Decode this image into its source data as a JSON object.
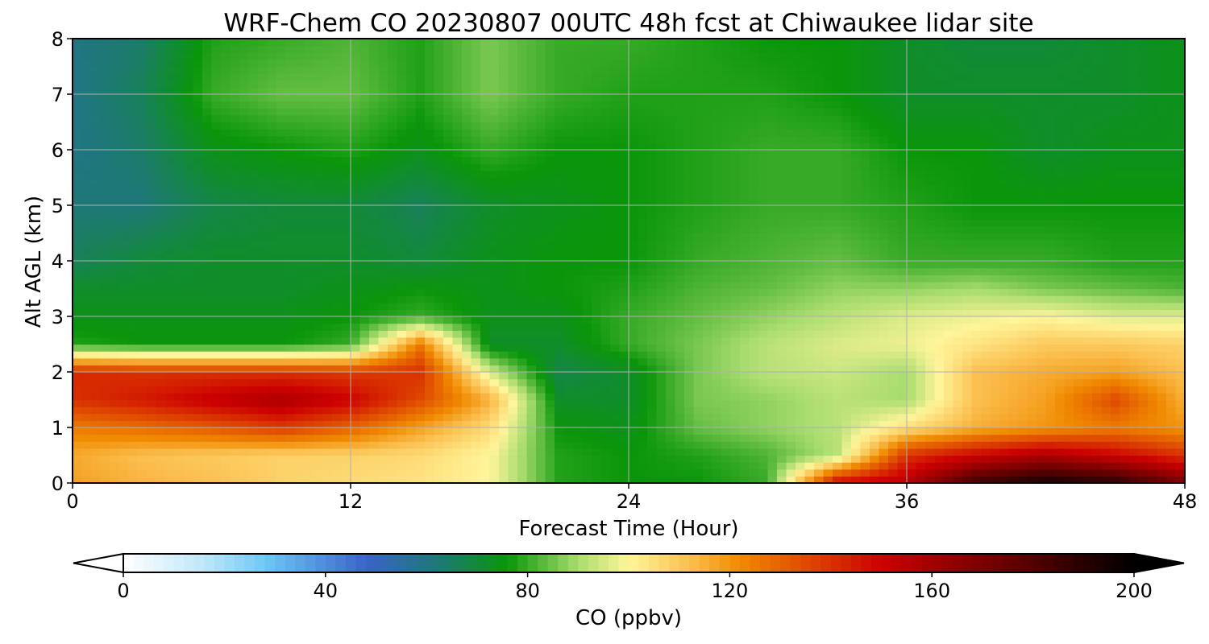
{
  "chart_data": {
    "type": "heatmap",
    "title": "WRF-Chem CO  20230807 00UTC 48h fcst at Chiwaukee lidar site",
    "xlabel": "Forecast Time (Hour)",
    "ylabel": "Alt AGL (km)",
    "xlim": [
      0,
      48
    ],
    "ylim": [
      0,
      8
    ],
    "xticks": [
      0,
      12,
      24,
      36,
      48
    ],
    "yticks": [
      0,
      1,
      2,
      3,
      4,
      5,
      6,
      7,
      8
    ],
    "grid": true,
    "x": [
      0,
      3,
      6,
      9,
      12,
      15,
      18,
      21,
      24,
      27,
      30,
      33,
      36,
      39,
      42,
      45,
      48
    ],
    "y": [
      0,
      0.5,
      1,
      1.5,
      2,
      2.5,
      3,
      3.5,
      4,
      5,
      6,
      7,
      8
    ],
    "z": [
      [
        118,
        114,
        112,
        108,
        106,
        104,
        100,
        78,
        76,
        76,
        80,
        150,
        155,
        185,
        195,
        190,
        170
      ],
      [
        116,
        112,
        110,
        108,
        108,
        106,
        100,
        78,
        76,
        78,
        82,
        92,
        140,
        150,
        158,
        150,
        140
      ],
      [
        125,
        128,
        132,
        138,
        130,
        118,
        106,
        76,
        74,
        84,
        88,
        92,
        105,
        115,
        120,
        125,
        120
      ],
      [
        140,
        145,
        152,
        158,
        150,
        135,
        115,
        72,
        72,
        86,
        88,
        92,
        90,
        112,
        118,
        135,
        115
      ],
      [
        142,
        140,
        140,
        140,
        138,
        140,
        95,
        68,
        72,
        86,
        92,
        94,
        90,
        112,
        116,
        118,
        112
      ],
      [
        78,
        76,
        76,
        76,
        80,
        125,
        72,
        72,
        80,
        86,
        92,
        96,
        98,
        104,
        110,
        110,
        108
      ],
      [
        74,
        74,
        74,
        74,
        76,
        80,
        74,
        74,
        80,
        84,
        88,
        92,
        96,
        98,
        100,
        96,
        96
      ],
      [
        72,
        72,
        72,
        72,
        74,
        76,
        74,
        76,
        78,
        82,
        84,
        88,
        88,
        90,
        86,
        84,
        82
      ],
      [
        66,
        70,
        72,
        72,
        72,
        70,
        74,
        76,
        76,
        80,
        82,
        84,
        80,
        80,
        80,
        78,
        78
      ],
      [
        62,
        62,
        68,
        70,
        70,
        66,
        72,
        74,
        76,
        78,
        80,
        80,
        78,
        76,
        76,
        76,
        76
      ],
      [
        60,
        64,
        74,
        76,
        78,
        74,
        80,
        76,
        76,
        78,
        80,
        80,
        76,
        76,
        72,
        74,
        74
      ],
      [
        60,
        66,
        80,
        84,
        84,
        78,
        86,
        80,
        78,
        78,
        78,
        76,
        72,
        72,
        72,
        72,
        74
      ],
      [
        60,
        64,
        78,
        80,
        82,
        78,
        86,
        80,
        80,
        78,
        76,
        76,
        72,
        70,
        70,
        72,
        74
      ]
    ],
    "colorbar": {
      "label": "CO  (ppbv)",
      "min": 0,
      "max": 200,
      "ticks": [
        0,
        40,
        80,
        120,
        160,
        200
      ],
      "extend": "both",
      "colors": [
        {
          "v": 0,
          "c": "#ffffff"
        },
        {
          "v": 16,
          "c": "#bfe6fa"
        },
        {
          "v": 28,
          "c": "#6ec8f5"
        },
        {
          "v": 48,
          "c": "#3a64c8"
        },
        {
          "v": 62,
          "c": "#1e7878"
        },
        {
          "v": 76,
          "c": "#0a960a"
        },
        {
          "v": 90,
          "c": "#a8dc6e"
        },
        {
          "v": 100,
          "c": "#fff59a"
        },
        {
          "v": 112,
          "c": "#fbc050"
        },
        {
          "v": 122,
          "c": "#f08a00"
        },
        {
          "v": 150,
          "c": "#cc0000"
        },
        {
          "v": 178,
          "c": "#5a0000"
        },
        {
          "v": 200,
          "c": "#000000"
        }
      ]
    }
  }
}
